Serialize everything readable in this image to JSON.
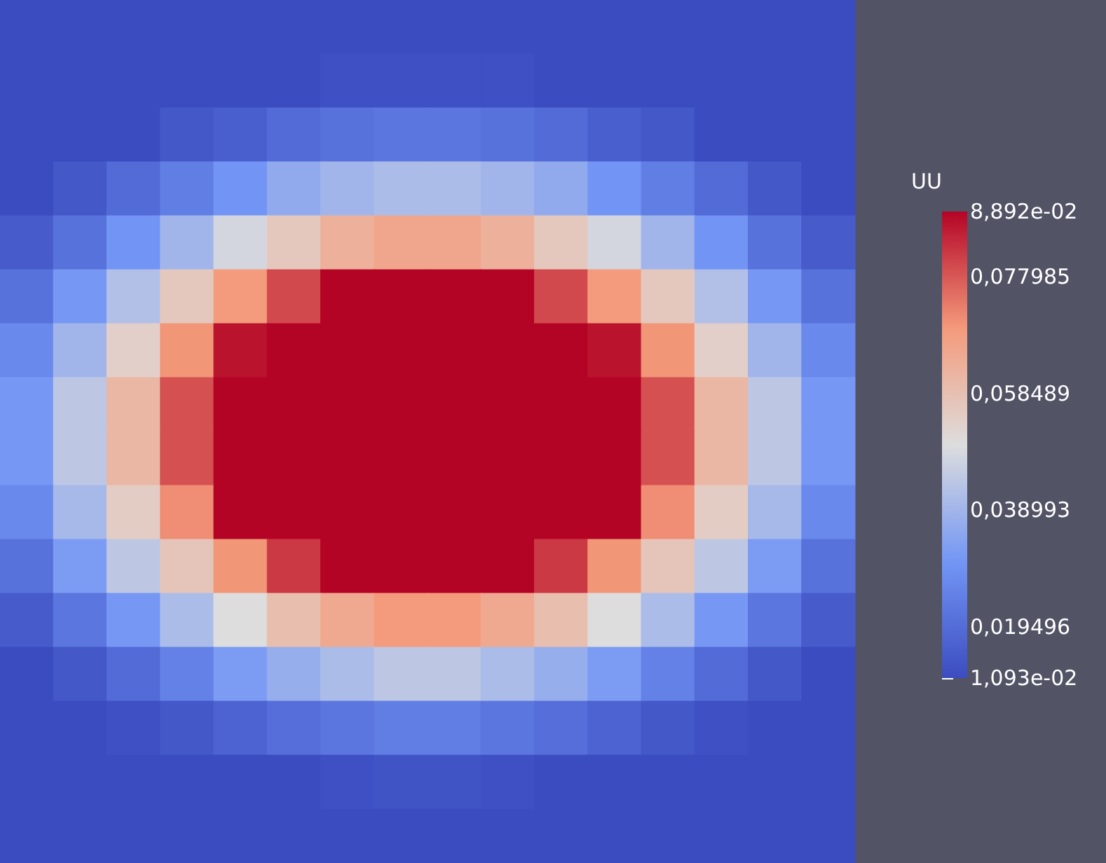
{
  "chart_data": {
    "type": "heatmap",
    "clabel": "UU",
    "tick_labels": false,
    "categories": [
      null,
      null,
      null,
      null,
      null,
      null,
      null,
      null,
      null,
      null,
      null,
      null,
      null,
      null,
      null,
      null
    ],
    "y_categories": [
      null,
      null,
      null,
      null,
      null,
      null,
      null,
      null,
      null,
      null,
      null,
      null,
      null,
      null,
      null,
      null
    ],
    "cells": [
      [
        0.011,
        0.011,
        0.011,
        0.011,
        0.011,
        0.011,
        0.011,
        0.011,
        0.011,
        0.011,
        0.011,
        0.011,
        0.011,
        0.011,
        0.011,
        0.011
      ],
      [
        0.011,
        0.011,
        0.011,
        0.011,
        0.011,
        0.011,
        0.012,
        0.012,
        0.012,
        0.012,
        0.011,
        0.011,
        0.011,
        0.011,
        0.011,
        0.011
      ],
      [
        0.011,
        0.011,
        0.011,
        0.014,
        0.016,
        0.019,
        0.021,
        0.022,
        0.022,
        0.021,
        0.019,
        0.016,
        0.014,
        0.011,
        0.011,
        0.011
      ],
      [
        0.011,
        0.014,
        0.019,
        0.024,
        0.03,
        0.036,
        0.039,
        0.041,
        0.041,
        0.039,
        0.036,
        0.03,
        0.024,
        0.019,
        0.014,
        0.011
      ],
      [
        0.015,
        0.021,
        0.03,
        0.039,
        0.048,
        0.056,
        0.063,
        0.066,
        0.066,
        0.063,
        0.056,
        0.048,
        0.039,
        0.03,
        0.021,
        0.015
      ],
      [
        0.021,
        0.031,
        0.042,
        0.056,
        0.069,
        0.08,
        0.0889,
        0.0889,
        0.0889,
        0.0889,
        0.08,
        0.069,
        0.056,
        0.042,
        0.031,
        0.021
      ],
      [
        0.027,
        0.039,
        0.054,
        0.07,
        0.087,
        0.0889,
        0.0889,
        0.0889,
        0.0889,
        0.0889,
        0.0889,
        0.087,
        0.07,
        0.054,
        0.039,
        0.027
      ],
      [
        0.031,
        0.044,
        0.061,
        0.079,
        0.0889,
        0.0889,
        0.0889,
        0.0889,
        0.0889,
        0.0889,
        0.0889,
        0.0889,
        0.079,
        0.061,
        0.044,
        0.031
      ],
      [
        0.031,
        0.044,
        0.061,
        0.079,
        0.0889,
        0.0889,
        0.0889,
        0.0889,
        0.0889,
        0.0889,
        0.0889,
        0.0889,
        0.079,
        0.061,
        0.044,
        0.031
      ],
      [
        0.027,
        0.04,
        0.055,
        0.071,
        0.0889,
        0.0889,
        0.0889,
        0.0889,
        0.0889,
        0.0889,
        0.0889,
        0.0889,
        0.071,
        0.055,
        0.04,
        0.027
      ],
      [
        0.021,
        0.032,
        0.044,
        0.057,
        0.07,
        0.082,
        0.0889,
        0.0889,
        0.0889,
        0.0889,
        0.082,
        0.07,
        0.057,
        0.044,
        0.032,
        0.021
      ],
      [
        0.015,
        0.022,
        0.031,
        0.041,
        0.05,
        0.059,
        0.065,
        0.069,
        0.069,
        0.065,
        0.059,
        0.05,
        0.041,
        0.031,
        0.022,
        0.015
      ],
      [
        0.011,
        0.014,
        0.019,
        0.025,
        0.032,
        0.037,
        0.041,
        0.044,
        0.044,
        0.041,
        0.037,
        0.032,
        0.025,
        0.019,
        0.014,
        0.011
      ],
      [
        0.011,
        0.011,
        0.012,
        0.014,
        0.017,
        0.02,
        0.022,
        0.024,
        0.024,
        0.022,
        0.02,
        0.017,
        0.014,
        0.012,
        0.011,
        0.011
      ],
      [
        0.011,
        0.011,
        0.011,
        0.011,
        0.011,
        0.011,
        0.012,
        0.013,
        0.013,
        0.012,
        0.011,
        0.011,
        0.011,
        0.011,
        0.011,
        0.011
      ],
      [
        0.011,
        0.011,
        0.011,
        0.011,
        0.011,
        0.011,
        0.011,
        0.011,
        0.011,
        0.011,
        0.011,
        0.011,
        0.011,
        0.011,
        0.011,
        0.011
      ]
    ],
    "clim": [
      0.01093,
      0.08892
    ],
    "cticks": [
      {
        "value": 0.01093,
        "label": "1,093e-02"
      },
      {
        "value": 0.019496,
        "label": "0,019496"
      },
      {
        "value": 0.038993,
        "label": "0,038993"
      },
      {
        "value": 0.058489,
        "label": "0,058489"
      },
      {
        "value": 0.077985,
        "label": "0,077985"
      },
      {
        "value": 0.08892,
        "label": "8,892e-02"
      }
    ]
  }
}
